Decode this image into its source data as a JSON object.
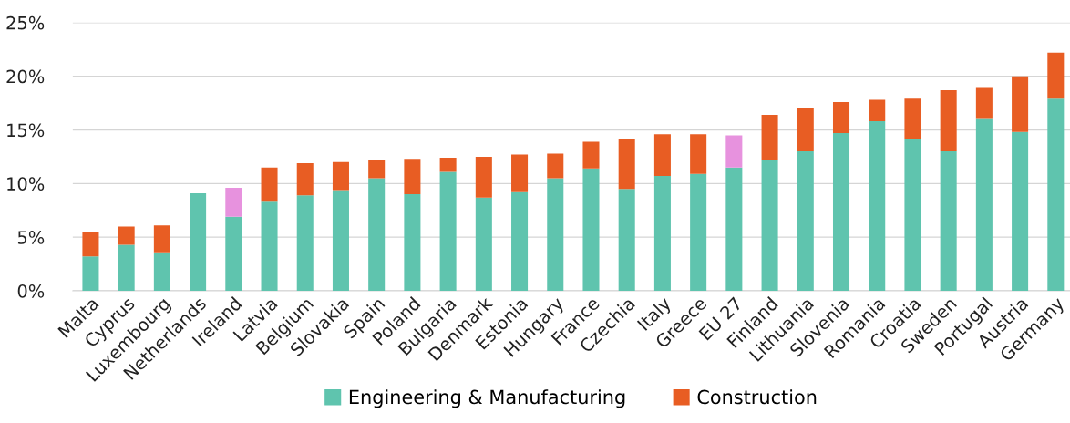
{
  "chart_data": {
    "type": "bar",
    "stacked": true,
    "categories": [
      "Malta",
      "Cyprus",
      "Luxembourg",
      "Netherlands",
      "Ireland",
      "Latvia",
      "Belgium",
      "Slovakia",
      "Spain",
      "Poland",
      "Bulgaria",
      "Denmark",
      "Estonia",
      "Hungary",
      "France",
      "Czechia",
      "Italy",
      "Greece",
      "EU 27",
      "Finland",
      "Lithuania",
      "Slovenia",
      "Romania",
      "Croatia",
      "Sweden",
      "Portugal",
      "Austria",
      "Germany"
    ],
    "series": [
      {
        "name": "Engineering & Manufacturing",
        "color": "#5fc4ae",
        "values": [
          3.2,
          4.3,
          3.6,
          9.1,
          6.9,
          8.3,
          8.9,
          9.4,
          10.5,
          9.0,
          11.1,
          8.7,
          9.2,
          10.5,
          11.4,
          9.5,
          10.7,
          10.9,
          11.5,
          12.2,
          13.0,
          14.7,
          15.8,
          14.1,
          13.0,
          16.1,
          14.8,
          17.9
        ]
      },
      {
        "name": "Construction",
        "color": "#e85d23",
        "colors": [
          "#e85d23",
          "#e85d23",
          "#e85d23",
          "#e85d23",
          "#e792de",
          "#e85d23",
          "#e85d23",
          "#e85d23",
          "#e85d23",
          "#e85d23",
          "#e85d23",
          "#e85d23",
          "#e85d23",
          "#e85d23",
          "#e85d23",
          "#e85d23",
          "#e85d23",
          "#e85d23",
          "#e792de",
          "#e85d23",
          "#e85d23",
          "#e85d23",
          "#e85d23",
          "#e85d23",
          "#e85d23",
          "#e85d23",
          "#e85d23",
          "#e85d23"
        ],
        "values": [
          2.3,
          1.7,
          2.5,
          0.0,
          2.7,
          3.2,
          3.0,
          2.6,
          1.7,
          3.3,
          1.3,
          3.8,
          3.5,
          2.3,
          2.5,
          4.6,
          3.9,
          3.7,
          3.0,
          4.2,
          4.0,
          2.9,
          2.0,
          3.8,
          5.7,
          2.9,
          5.2,
          4.3
        ]
      }
    ],
    "ylim": [
      0,
      25
    ],
    "yticks": [
      {
        "value": 0,
        "label": "0%"
      },
      {
        "value": 5,
        "label": "5%"
      },
      {
        "value": 10,
        "label": "10%"
      },
      {
        "value": 15,
        "label": "15%"
      },
      {
        "value": 20,
        "label": "20%"
      },
      {
        "value": 25,
        "label": "25%"
      }
    ],
    "grid": "y",
    "legend": "bottom"
  }
}
